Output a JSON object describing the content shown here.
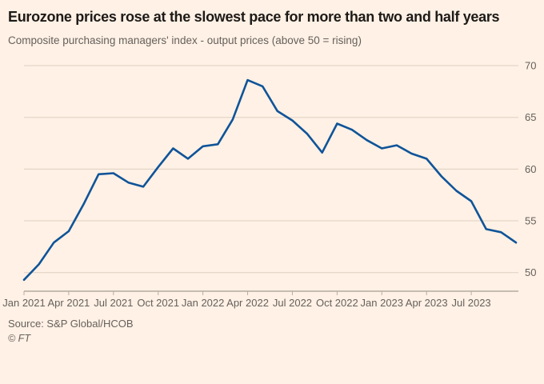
{
  "header": {
    "title": "Eurozone prices rose at the slowest pace for more than two and half years",
    "subtitle": "Composite purchasing managers' index - output prices (above 50 = rising)"
  },
  "footer": {
    "source": "Source: S&P Global/HCOB",
    "copyright": "© FT"
  },
  "colors": {
    "background": "#FFF1E5",
    "line": "#0F5499",
    "grid": "#DED0C1",
    "axis": "#8F867C",
    "tick": "#B8ACA0",
    "title_text": "#1D1A18",
    "muted_text": "#66605C"
  },
  "chart_data": {
    "type": "line",
    "title": "Eurozone prices rose at the slowest pace for more than two and half years",
    "subtitle": "Composite purchasing managers' index - output prices (above 50 = rising)",
    "series_name": "Composite PMI output prices",
    "x": [
      "Jan 2021",
      "Feb 2021",
      "Mar 2021",
      "Apr 2021",
      "May 2021",
      "Jun 2021",
      "Jul 2021",
      "Aug 2021",
      "Sep 2021",
      "Oct 2021",
      "Nov 2021",
      "Dec 2021",
      "Jan 2022",
      "Feb 2022",
      "Mar 2022",
      "Apr 2022",
      "May 2022",
      "Jun 2022",
      "Jul 2022",
      "Aug 2022",
      "Sep 2022",
      "Oct 2022",
      "Nov 2022",
      "Dec 2022",
      "Jan 2023",
      "Feb 2023",
      "Mar 2023",
      "Apr 2023",
      "May 2023",
      "Jun 2023",
      "Jul 2023",
      "Aug 2023",
      "Sep 2023",
      "Oct 2023"
    ],
    "values": [
      49.3,
      50.8,
      52.9,
      54.0,
      56.6,
      59.5,
      59.6,
      58.7,
      58.3,
      60.2,
      62.0,
      61.0,
      62.2,
      62.4,
      64.8,
      68.6,
      68.0,
      65.6,
      64.7,
      63.4,
      61.6,
      64.4,
      63.8,
      62.8,
      62.0,
      62.3,
      61.5,
      61.0,
      59.3,
      57.9,
      56.9,
      54.2,
      53.9,
      52.9
    ],
    "y_ticks": [
      50,
      55,
      60,
      65,
      70
    ],
    "ylim": [
      48.2,
      71.2
    ],
    "x_tick_indices": [
      0,
      3,
      6,
      9,
      12,
      15,
      18,
      21,
      24,
      27,
      30
    ],
    "x_tick_labels": [
      "Jan 2021",
      "Apr 2021",
      "Jul 2021",
      "Oct 2021",
      "Jan 2022",
      "Apr 2022",
      "Jul 2022",
      "Oct 2022",
      "Jan 2023",
      "Apr 2023",
      "Jul 2023"
    ],
    "grid": "horizontal",
    "legend": "none",
    "xlabel": "",
    "ylabel": ""
  }
}
